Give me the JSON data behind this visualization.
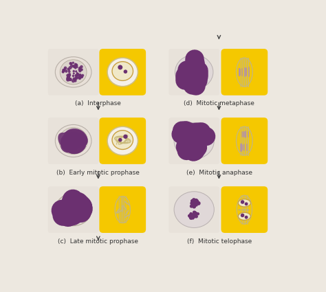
{
  "background_color": "#ede8e0",
  "yellow": "#f5c800",
  "chromatin_color": "#6b3070",
  "spindle_color": "#c8b878",
  "micro_bg": "#e8e0d8",
  "micro_cell_fill": "#dcd4cc",
  "micro_cell_edge": "#c0b8b0",
  "white_cell": "#f5f0e8",
  "nucleus_fill": "#e8e0d0",
  "nucleus_edge": "#c0a860",
  "label_fontsize": 6.5,
  "arrow_color": "#444444",
  "labels": [
    "(a)  Interphase",
    "(b)  Early mitotic prophase",
    "(c)  Late mitotic prophase",
    "(d)  Mitotic metaphase",
    "(e)  Mitotic anaphase",
    "(f)  Mitotic telophase"
  ]
}
